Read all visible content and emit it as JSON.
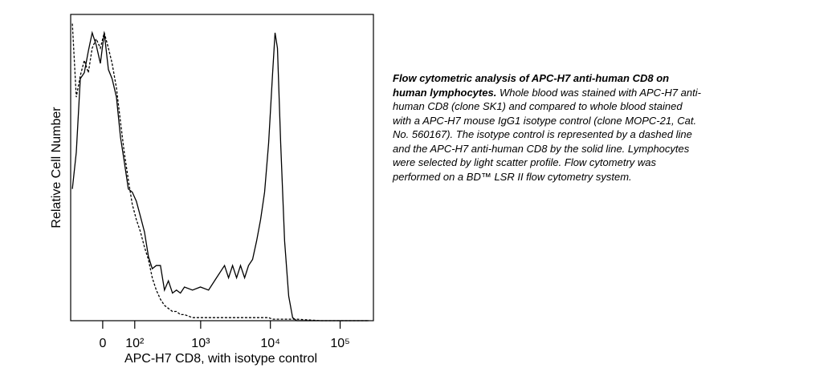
{
  "chart_data": {
    "type": "line",
    "xlabel": "APC-H7 CD8, with isotype control",
    "ylabel": "Relative Cell Number",
    "xscale": "biexponential",
    "xlim": [
      -100,
      300000
    ],
    "ylim": [
      0,
      100
    ],
    "xticks": [
      0,
      {
        "value": 100,
        "label": "10²"
      },
      {
        "value": 1000,
        "label": "10³"
      },
      {
        "value": 10000,
        "label": "10⁴"
      },
      {
        "value": 100000,
        "label": "10⁵"
      }
    ],
    "x": [
      -93,
      -78,
      -64,
      -51,
      -39,
      -28,
      -17,
      -6,
      4,
      15,
      25,
      37,
      49,
      61,
      75,
      90,
      107,
      126,
      147,
      170,
      195,
      225,
      260,
      298,
      341,
      391,
      447,
      511,
      584,
      762,
      994,
      1297,
      1690,
      2204,
      2513,
      2870,
      3276,
      3737,
      4268,
      4871,
      5561,
      6344,
      7244,
      8268,
      9436,
      10770,
      11663,
      12624,
      14034,
      16014,
      18290,
      20872,
      23820,
      52640,
      257540
    ],
    "series": [
      {
        "color": "#000000",
        "dash": "solid",
        "values": [
          43,
          55,
          79,
          81,
          88,
          94,
          90,
          84,
          94,
          82,
          79,
          73,
          60,
          52,
          43,
          42,
          39,
          34,
          29,
          21,
          17,
          18,
          18,
          10,
          13,
          9,
          10,
          9,
          11,
          10,
          11,
          10,
          14,
          18,
          14,
          18,
          14,
          18,
          14,
          18,
          20,
          26,
          33,
          42,
          58,
          81,
          94,
          89,
          58,
          26,
          8,
          1,
          0,
          0,
          0
        ]
      },
      {
        "color": "#000000",
        "dash": "dashed",
        "values": [
          97,
          73,
          80,
          85,
          81,
          89,
          92,
          89,
          94,
          89,
          84,
          76,
          65,
          55,
          46,
          38,
          33,
          29,
          24,
          20,
          14,
          10,
          7,
          5,
          4,
          3,
          3,
          2,
          2,
          1,
          1,
          1,
          1,
          1,
          1,
          1,
          1,
          1,
          1,
          1,
          1,
          1,
          1,
          1,
          1,
          0.5,
          0.5,
          0.5,
          0.5,
          0.5,
          0.5,
          0.5,
          0.5,
          0,
          0
        ]
      }
    ]
  },
  "caption": {
    "heading": "Flow cytometric analysis of APC-H7 anti-human CD8 on human lymphocytes.",
    "text": "Whole blood was stained with APC-H7 anti-human CD8 (clone SK1) and compared to whole blood stained with a APC-H7 mouse IgG1 isotype control (clone MOPC-21, Cat. No. 560167).  The isotype control is represented by a dashed line and the APC-H7 anti-human CD8 by the solid line. Lymphocytes were selected by light scatter profile. Flow cytometry was performed on a BD™ LSR II flow cytometry system."
  }
}
